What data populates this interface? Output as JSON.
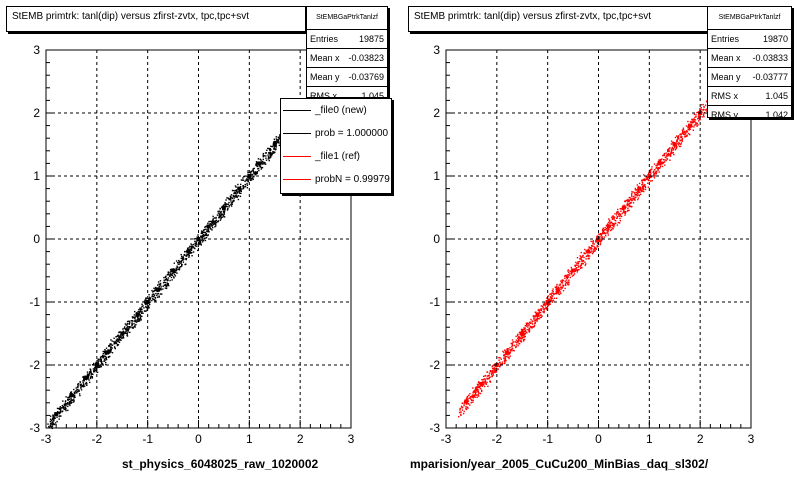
{
  "chart_data": [
    {
      "type": "scatter",
      "title": "StEMB primtrk: tanl(dip) versus zfirst-zvtx, tpc,tpc+svt",
      "xlabel": "st_physics_6048025_raw_1020002",
      "ylabel": "",
      "xlim": [
        -3,
        3
      ],
      "ylim": [
        -3,
        3
      ],
      "xticks": [
        "-3",
        "-2",
        "-1",
        "0",
        "1",
        "2",
        "3"
      ],
      "yticks": [
        "-3",
        "-2",
        "-1",
        "0",
        "1",
        "2",
        "3"
      ],
      "grid": true,
      "series": [
        {
          "name": "_file0 (new)",
          "color": "#000000",
          "x": [
            -2.8,
            -2.5,
            -2.2,
            -2.0,
            -1.8,
            -1.5,
            -1.2,
            -1.0,
            -0.8,
            -0.5,
            -0.2,
            0.0,
            0.2,
            0.5,
            0.8,
            1.0,
            1.2,
            1.5,
            1.8
          ],
          "y": [
            -2.78,
            -2.48,
            -2.2,
            -2.0,
            -1.8,
            -1.5,
            -1.2,
            -1.0,
            -0.8,
            -0.5,
            -0.2,
            0.0,
            0.2,
            0.5,
            0.8,
            1.0,
            1.2,
            1.5,
            1.8
          ]
        }
      ],
      "stats": {
        "name": "StEMBGaPtrkTanlzf",
        "rows": [
          {
            "label": "Entries",
            "value": "19875"
          },
          {
            "label": "Mean x",
            "value": "-0.03823"
          },
          {
            "label": "Mean y",
            "value": "-0.03769"
          },
          {
            "label": "RMS x",
            "value": "1.045"
          }
        ]
      },
      "legend": {
        "placement": "top-right",
        "entries": [
          {
            "label": "_file0 (new)",
            "color": "#000000"
          },
          {
            "label": "prob = 1.000000",
            "color": "#000000"
          },
          {
            "label": "_file1 (ref)",
            "color": "#ff0000"
          },
          {
            "label": "probN = 0.99979",
            "color": "#ff0000"
          }
        ]
      }
    },
    {
      "type": "scatter",
      "title": "StEMB primtrk: tanl(dip) versus zfirst-zvtx, tpc,tpc+svt",
      "xlabel": "mparision/year_2005_CuCu200_MinBias_daq_sl302/",
      "ylabel": "",
      "xlim": [
        -3,
        3
      ],
      "ylim": [
        -3,
        3
      ],
      "xticks": [
        "-3",
        "-2",
        "-1",
        "0",
        "1",
        "2",
        "3"
      ],
      "yticks": [
        "-3",
        "-2",
        "-1",
        "0",
        "1",
        "2",
        "3"
      ],
      "grid": true,
      "series": [
        {
          "name": "_file1 (ref)",
          "color": "#ff0000",
          "x": [
            -2.6,
            -2.3,
            -2.0,
            -1.8,
            -1.5,
            -1.2,
            -1.0,
            -0.8,
            -0.5,
            -0.2,
            0.0,
            0.2,
            0.5,
            0.8,
            1.0,
            1.2,
            1.5,
            1.8,
            2.0,
            2.2
          ],
          "y": [
            -2.58,
            -2.3,
            -2.0,
            -1.8,
            -1.5,
            -1.2,
            -1.0,
            -0.8,
            -0.5,
            -0.2,
            0.0,
            0.2,
            0.5,
            0.8,
            1.0,
            1.2,
            1.5,
            1.8,
            2.0,
            2.2
          ]
        }
      ],
      "stats": {
        "name": "StEMBGaPtrkTanlzf",
        "rows": [
          {
            "label": "Entries",
            "value": "19870"
          },
          {
            "label": "Mean x",
            "value": "-0.03833"
          },
          {
            "label": "Mean y",
            "value": "-0.03777"
          },
          {
            "label": "RMS x",
            "value": "1.045"
          },
          {
            "label": "RMS y",
            "value": "1.042"
          }
        ]
      }
    }
  ]
}
